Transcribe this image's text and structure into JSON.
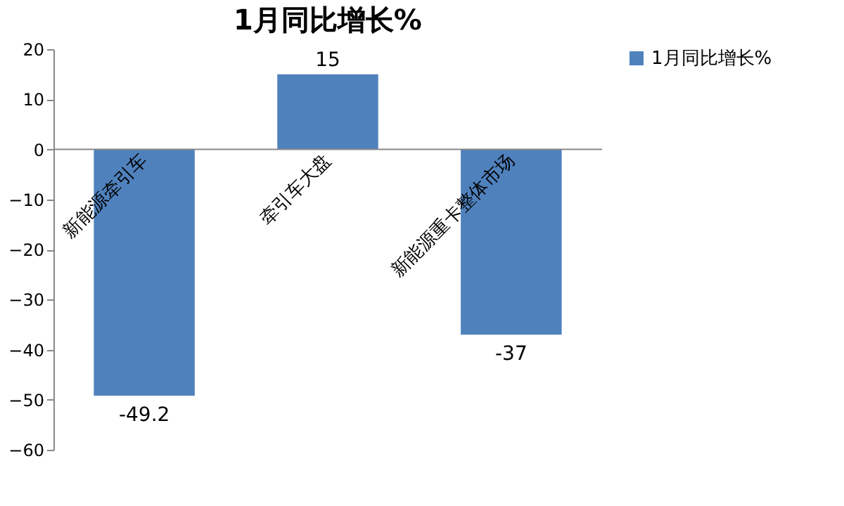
{
  "chart_data": {
    "type": "bar",
    "title": "1月同比增长%",
    "categories": [
      "新能源牵引车",
      "牵引车大盘",
      "新能源重卡整体市场"
    ],
    "series": [
      {
        "name": "1月同比增长%",
        "color": "#4f81bd",
        "values": [
          -49.2,
          15,
          -37
        ]
      }
    ],
    "ylim": [
      -60,
      20
    ],
    "yticks": [
      -60,
      -50,
      -40,
      -30,
      -20,
      -10,
      0,
      10,
      20
    ],
    "grid": false,
    "legend": "right",
    "data_labels": true
  }
}
